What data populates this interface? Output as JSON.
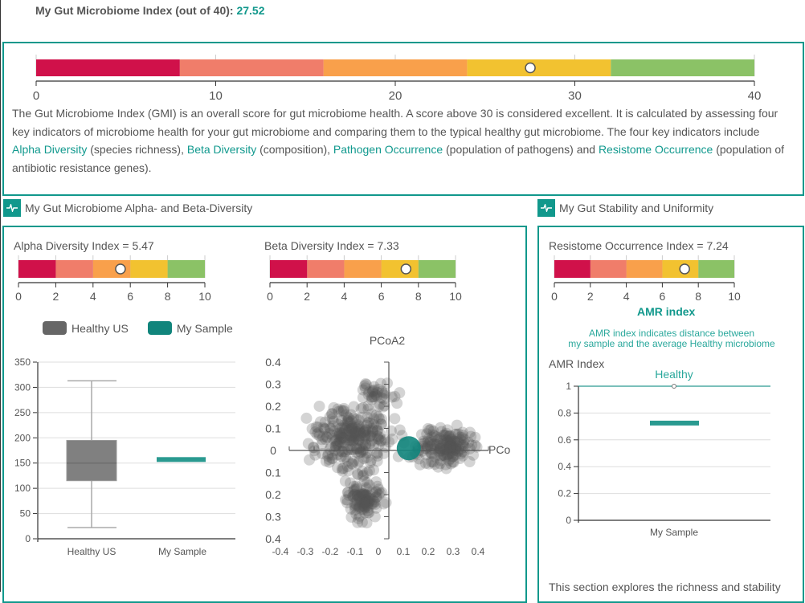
{
  "header": {
    "label": "My Gut Microbiome Index (out of 40):",
    "value": "27.52"
  },
  "colors": {
    "accent": "#11988c",
    "segments": [
      "#d0114a",
      "#f07d6a",
      "#f9a04b",
      "#f2c230",
      "#8bc266"
    ],
    "healthy": "#666666"
  },
  "gmi_gauge": {
    "min": 0,
    "max": 40,
    "value": 27.52,
    "ticks": [
      "0",
      "10",
      "20",
      "30",
      "40"
    ]
  },
  "gmi_description": {
    "p1": "The Gut Microbiome Index (GMI) is an overall score for gut microbiome health. A score above 30 is considered excellent. It is calculated by assessing four key indicators of microbiome health for your gut microbiome and comparing them to the typical healthy gut microbiome. The four key indicators include ",
    "link1": "Alpha Diversity",
    "t1": " (species richness), ",
    "link2": "Beta Diversity",
    "t2": " (composition), ",
    "link3": "Pathogen Occurrence",
    "t3": " (population of pathogens) and ",
    "link4": "Resistome Occurrence",
    "t4": " (population of antibiotic resistance genes)."
  },
  "sections": {
    "diversity_title": "My Gut Microbiome Alpha- and Beta-Diversity",
    "stability_title": "My Gut Stability and Uniformity",
    "icon": "pulse-icon"
  },
  "alpha": {
    "label": "Alpha Diversity Index = 5.47",
    "value": 5.47,
    "min": 0,
    "max": 10,
    "ticks": [
      "0",
      "2",
      "4",
      "6",
      "8",
      "10"
    ]
  },
  "beta": {
    "label": "Beta Diversity Index = 7.33",
    "value": 7.33,
    "min": 0,
    "max": 10,
    "ticks": [
      "0",
      "2",
      "4",
      "6",
      "8",
      "10"
    ]
  },
  "resistome": {
    "label": "Resistome Occurrence Index = 7.24",
    "value": 7.24,
    "min": 0,
    "max": 10,
    "ticks": [
      "0",
      "2",
      "4",
      "6",
      "8",
      "10"
    ]
  },
  "legend": [
    {
      "name": "Healthy US",
      "color": "#666666"
    },
    {
      "name": "My Sample",
      "color": "#11857c"
    }
  ],
  "chart_data": [
    {
      "type": "box",
      "categories": [
        "Healthy US",
        "My Sample"
      ],
      "ylim": [
        0,
        350
      ],
      "yticks": [
        "0",
        "50",
        "100",
        "150",
        "200",
        "250",
        "300",
        "350"
      ],
      "healthy_us": {
        "min": 22,
        "q1": 115,
        "median": 150,
        "q3": 195,
        "max": 313
      },
      "my_sample": 157,
      "grid": true
    },
    {
      "type": "scatter",
      "xlabel": "PCo",
      "ylabel": "PCoA2",
      "xlim": [
        -0.4,
        0.4
      ],
      "ylim": [
        -0.4,
        0.4
      ],
      "xticks": [
        "-0.4",
        "-0.3",
        "-0.2",
        "-0.1",
        "0",
        "0.1",
        "0.2",
        "0.3",
        "0.4"
      ],
      "yticks": [
        "0.4",
        "0.3",
        "0.2",
        "0.1",
        "0",
        "0.1",
        "0.2",
        "0.3",
        "0.4"
      ],
      "my_sample": {
        "x": 0.08,
        "y": 0.01
      }
    },
    {
      "type": "line",
      "title": "AMR index",
      "subtitle": "AMR index indicates distance between\nmy sample and the average Healthy microbiome",
      "ylabel": "AMR Index",
      "categories": [
        "My Sample"
      ],
      "ylim": [
        0,
        1
      ],
      "yticks": [
        "0",
        "0.2",
        "0.4",
        "0.6",
        "0.8",
        "1"
      ],
      "healthy": {
        "name": "Healthy",
        "value": 1
      },
      "my_sample": 0.725,
      "grid": true
    }
  ],
  "stability_text": "This section explores the richness and stability"
}
